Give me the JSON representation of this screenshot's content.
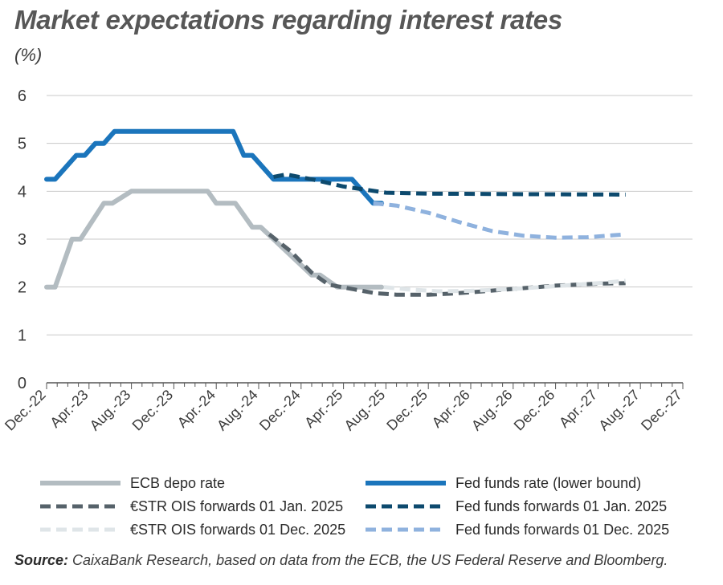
{
  "title": "Market expectations regarding interest rates",
  "unit": "(%)",
  "source_label": "Source:",
  "source_text": " CaixaBank Research, based on data from the ECB, the US Federal Reserve and Bloomberg.",
  "chart_data": {
    "type": "line",
    "ylim": [
      0,
      6
    ],
    "yticks": [
      0,
      1,
      2,
      3,
      4,
      5,
      6
    ],
    "grid": true,
    "x_tick_labels": [
      "Dec.-22",
      "Apr.-23",
      "Aug.-23",
      "Dec.-23",
      "Apr.-24",
      "Aug.-24",
      "Dec.-24",
      "Apr.-25",
      "Aug.-25",
      "Dec.-25",
      "Apr.-26",
      "Aug.-26",
      "Dec.-26",
      "Apr.-27",
      "Aug.-27",
      "Dec.-27"
    ],
    "x_unit": "months since Dec-2022",
    "series": [
      {
        "name": "ECB depo rate",
        "color": "#b3bcc1",
        "dash": "solid",
        "points": [
          [
            0,
            2.0
          ],
          [
            0.4,
            2.0
          ],
          [
            1.2,
            3.0
          ],
          [
            1.6,
            3.0
          ],
          [
            2.7,
            3.75
          ],
          [
            3.1,
            3.75
          ],
          [
            4,
            4.0
          ],
          [
            7.6,
            4.0
          ],
          [
            8.0,
            3.75
          ],
          [
            8.9,
            3.75
          ],
          [
            9.7,
            3.25
          ],
          [
            10.1,
            3.25
          ],
          [
            11.3,
            2.75
          ],
          [
            12.5,
            2.25
          ],
          [
            12.9,
            2.25
          ],
          [
            13.7,
            2.0
          ],
          [
            15.8,
            2.0
          ]
        ]
      },
      {
        "name": "Fed funds rate (lower bound)",
        "color": "#1b75bc",
        "dash": "solid",
        "points": [
          [
            0,
            4.25
          ],
          [
            0.4,
            4.25
          ],
          [
            1.4,
            4.75
          ],
          [
            1.8,
            4.75
          ],
          [
            2.3,
            5.0
          ],
          [
            2.7,
            5.0
          ],
          [
            3.2,
            5.25
          ],
          [
            8.8,
            5.25
          ],
          [
            9.3,
            4.75
          ],
          [
            9.7,
            4.75
          ],
          [
            10.7,
            4.25
          ],
          [
            14.4,
            4.25
          ],
          [
            15.4,
            3.75
          ],
          [
            15.8,
            3.75
          ]
        ]
      },
      {
        "name": "€STR OIS forwards 01 Jan. 2025",
        "color": "#56626a",
        "dash": "dash",
        "points": [
          [
            10.5,
            3.1
          ],
          [
            11.5,
            2.75
          ],
          [
            12.5,
            2.3
          ],
          [
            13.3,
            2.05
          ],
          [
            14.5,
            1.95
          ],
          [
            15.5,
            1.87
          ],
          [
            16.5,
            1.84
          ],
          [
            18,
            1.84
          ],
          [
            19,
            1.86
          ],
          [
            20,
            1.89
          ],
          [
            22,
            1.96
          ],
          [
            24,
            2.03
          ],
          [
            26,
            2.07
          ],
          [
            27.3,
            2.08
          ]
        ]
      },
      {
        "name": "Fed funds forwards 01 Jan. 2025",
        "color": "#0d4a6e",
        "dash": "dash",
        "points": [
          [
            10.7,
            4.3
          ],
          [
            11.3,
            4.35
          ],
          [
            12.5,
            4.25
          ],
          [
            14,
            4.1
          ],
          [
            16,
            3.97
          ],
          [
            18,
            3.95
          ],
          [
            22,
            3.94
          ],
          [
            27.3,
            3.93
          ]
        ]
      },
      {
        "name": "€STR OIS forwards 01 Dec. 2025",
        "color": "#dfe5e8",
        "dash": "dash",
        "points": [
          [
            15.9,
            2.0
          ],
          [
            17,
            1.95
          ],
          [
            18.5,
            1.91
          ],
          [
            20,
            1.92
          ],
          [
            22,
            1.96
          ],
          [
            24,
            2.02
          ],
          [
            26,
            2.08
          ],
          [
            27.3,
            2.13
          ]
        ]
      },
      {
        "name": "Fed funds forwards 01 Dec. 2025",
        "color": "#8fb2de",
        "dash": "dash",
        "points": [
          [
            15.4,
            3.75
          ],
          [
            16.5,
            3.7
          ],
          [
            18,
            3.55
          ],
          [
            19.5,
            3.35
          ],
          [
            21,
            3.17
          ],
          [
            22.5,
            3.07
          ],
          [
            24,
            3.03
          ],
          [
            25.5,
            3.04
          ],
          [
            27.3,
            3.1
          ]
        ]
      }
    ],
    "legend_placement": "bottom, two columns"
  }
}
